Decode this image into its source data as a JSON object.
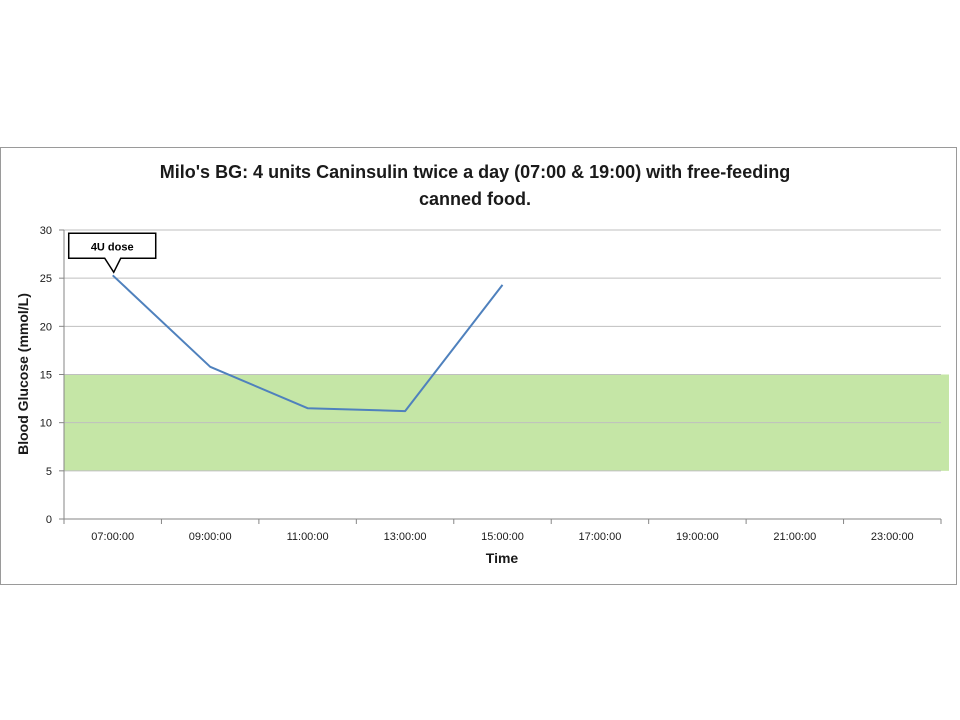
{
  "chart_data": {
    "type": "line",
    "title_lines": [
      "Milo's BG: 4 units Caninsulin twice a day (07:00 & 19:00) with free-feeding",
      "canned food."
    ],
    "xlabel": "Time",
    "ylabel": "Blood Glucose (mmol/L)",
    "categories": [
      "07:00:00",
      "09:00:00",
      "11:00:00",
      "13:00:00",
      "15:00:00",
      "17:00:00",
      "19:00:00",
      "21:00:00",
      "23:00:00"
    ],
    "y_ticks": [
      "0",
      "5",
      "10",
      "15",
      "20",
      "25",
      "30"
    ],
    "ylim": [
      0,
      30
    ],
    "grid": true,
    "series": [
      {
        "x": [
          "07:00:00",
          "09:00:00",
          "11:00:00",
          "13:00:00",
          "15:00:00"
        ],
        "values": [
          25.3,
          15.8,
          11.5,
          11.2,
          24.3
        ]
      }
    ],
    "target_band": {
      "y_min": 5,
      "y_max": 15
    },
    "annotations": [
      {
        "text": "4U dose",
        "x": "07:00:00",
        "y": 25.3
      }
    ],
    "colors": {
      "line": "#4f81bd",
      "band": "#c5e6a6",
      "grid": "#bfbfbf",
      "axis": "#868686"
    }
  }
}
